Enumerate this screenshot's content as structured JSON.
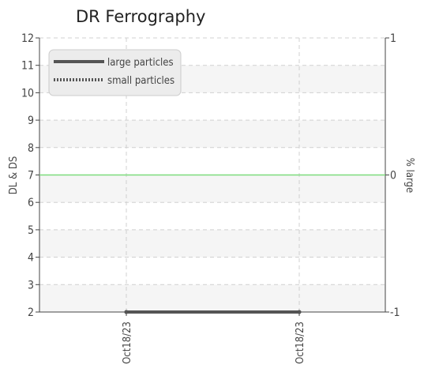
{
  "chart_data": {
    "type": "line",
    "title": "DR Ferrography",
    "ylabel": "DL & DS",
    "y2label": "% large",
    "ylim": [
      2,
      12
    ],
    "yticks": [
      2,
      3,
      4,
      5,
      6,
      7,
      8,
      9,
      10,
      11,
      12
    ],
    "y2lim": [
      -1,
      1
    ],
    "y2ticks": [
      -1,
      0,
      1
    ],
    "categories": [
      "Oct18/23",
      "Oct18/23"
    ],
    "grid": true,
    "legend_position": "top-left",
    "series": [
      {
        "name": "large particles",
        "axis": "left",
        "values": [
          2,
          2
        ],
        "color": "#555555",
        "style": "solid"
      },
      {
        "name": "small particles",
        "axis": "left",
        "values": [
          2,
          2
        ],
        "color": "#555555",
        "style": "dotted"
      },
      {
        "name": "",
        "axis": "right",
        "values": [
          0,
          0
        ],
        "color": "#7ddc7d",
        "style": "solid",
        "note_line": "full-width"
      }
    ]
  }
}
